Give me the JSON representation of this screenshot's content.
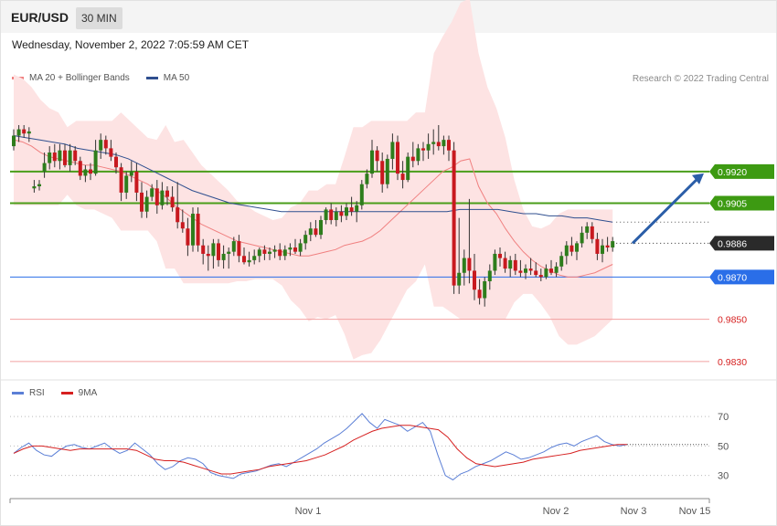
{
  "header": {
    "symbol": "EUR/USD",
    "timeframe": "30 MIN"
  },
  "datetime": "Wednesday, November 2, 2022 7:05:59 AM CET",
  "legend_main": [
    {
      "label": "MA 20 + Bollinger Bands",
      "color": "#f08080"
    },
    {
      "label": "MA 50",
      "color": "#2f4f8f"
    }
  ],
  "legend_rsi": [
    {
      "label": "RSI",
      "color": "#5b7fd6"
    },
    {
      "label": "9MA",
      "color": "#d62020"
    }
  ],
  "credit": "Research © 2022 Trading Central",
  "colors": {
    "up": "#2e7d1c",
    "down": "#c8191f",
    "band": "#fde3e3",
    "ma20": "#f08080",
    "ma50": "#2f4f8f",
    "resistance": "#4a9e1a",
    "support": "#2a6ee8",
    "target": "#f2a0a0",
    "current": "#2a2a2a",
    "arrow": "#2b5ea8"
  },
  "chart_data": [
    {
      "type": "line",
      "title": "EUR/USD 30 MIN",
      "ylim": [
        0.9823,
        0.9958
      ],
      "x_ticks": [
        "Nov 1",
        "Nov 2",
        "Nov 3",
        "Nov 15"
      ],
      "levels": [
        {
          "value": 0.992,
          "label": "0.9920",
          "kind": "resistance"
        },
        {
          "value": 0.9905,
          "label": "0.9905",
          "kind": "resistance"
        },
        {
          "value": 0.9886,
          "label": "0.9886",
          "kind": "current"
        },
        {
          "value": 0.987,
          "label": "0.9870",
          "kind": "support"
        },
        {
          "value": 0.985,
          "label": "0.9850",
          "kind": "target"
        },
        {
          "value": 0.983,
          "label": "0.9830",
          "kind": "target"
        }
      ],
      "forecast": {
        "from": 0.9886,
        "to": 0.992,
        "direction": "up"
      },
      "candles": [
        [
          0.9932,
          0.994,
          0.993,
          0.9937
        ],
        [
          0.9937,
          0.9942,
          0.9934,
          0.994
        ],
        [
          0.994,
          0.9942,
          0.9936,
          0.9938
        ],
        [
          0.9938,
          0.9941,
          0.9934,
          0.9939
        ],
        [
          0.9912,
          0.9916,
          0.991,
          0.9913
        ],
        [
          0.9913,
          0.9916,
          0.9911,
          0.9914
        ],
        [
          0.992,
          0.9929,
          0.9917,
          0.9924
        ],
        [
          0.9924,
          0.9932,
          0.9921,
          0.9929
        ],
        [
          0.9929,
          0.9933,
          0.9922,
          0.9925
        ],
        [
          0.9925,
          0.9933,
          0.9921,
          0.993
        ],
        [
          0.993,
          0.9933,
          0.9922,
          0.9923
        ],
        [
          0.9923,
          0.9933,
          0.992,
          0.993
        ],
        [
          0.993,
          0.9932,
          0.9923,
          0.9925
        ],
        [
          0.9925,
          0.9927,
          0.9916,
          0.9918
        ],
        [
          0.9918,
          0.9923,
          0.9915,
          0.9921
        ],
        [
          0.9921,
          0.9924,
          0.9916,
          0.9919
        ],
        [
          0.9919,
          0.9935,
          0.9918,
          0.993
        ],
        [
          0.993,
          0.9938,
          0.9926,
          0.9935
        ],
        [
          0.9935,
          0.9937,
          0.9928,
          0.9931
        ],
        [
          0.9931,
          0.9935,
          0.9925,
          0.9927
        ],
        [
          0.9927,
          0.9929,
          0.9919,
          0.9922
        ],
        [
          0.9922,
          0.9924,
          0.9906,
          0.991
        ],
        [
          0.991,
          0.992,
          0.9907,
          0.9918
        ],
        [
          0.9918,
          0.9925,
          0.9915,
          0.992
        ],
        [
          0.992,
          0.9924,
          0.9906,
          0.991
        ],
        [
          0.991,
          0.9915,
          0.9898,
          0.9901
        ],
        [
          0.9901,
          0.9911,
          0.9898,
          0.9908
        ],
        [
          0.9908,
          0.9914,
          0.9906,
          0.9912
        ],
        [
          0.9912,
          0.9916,
          0.99,
          0.9904
        ],
        [
          0.9904,
          0.9915,
          0.9902,
          0.9911
        ],
        [
          0.9911,
          0.9913,
          0.9904,
          0.9908
        ],
        [
          0.9908,
          0.9913,
          0.9901,
          0.9903
        ],
        [
          0.9903,
          0.9915,
          0.9893,
          0.9896
        ],
        [
          0.9896,
          0.9902,
          0.9891,
          0.9893
        ],
        [
          0.9893,
          0.9898,
          0.988,
          0.9885
        ],
        [
          0.9885,
          0.9903,
          0.9882,
          0.99
        ],
        [
          0.99,
          0.9903,
          0.9882,
          0.9885
        ],
        [
          0.9885,
          0.9888,
          0.9876,
          0.9881
        ],
        [
          0.9881,
          0.9885,
          0.9873,
          0.988
        ],
        [
          0.988,
          0.9888,
          0.9874,
          0.9886
        ],
        [
          0.9886,
          0.9888,
          0.9875,
          0.9878
        ],
        [
          0.9878,
          0.9885,
          0.9874,
          0.9881
        ],
        [
          0.9881,
          0.9884,
          0.9874,
          0.9882
        ],
        [
          0.9882,
          0.9889,
          0.988,
          0.9887
        ],
        [
          0.9887,
          0.989,
          0.9877,
          0.988
        ],
        [
          0.988,
          0.9884,
          0.9876,
          0.9877
        ],
        [
          0.9877,
          0.9882,
          0.9875,
          0.9878
        ],
        [
          0.9878,
          0.9883,
          0.9876,
          0.988
        ],
        [
          0.988,
          0.9884,
          0.9877,
          0.9883
        ],
        [
          0.9883,
          0.9885,
          0.9878,
          0.9881
        ],
        [
          0.9881,
          0.9884,
          0.9878,
          0.9882
        ],
        [
          0.9882,
          0.9885,
          0.9879,
          0.9883
        ],
        [
          0.9883,
          0.9886,
          0.9878,
          0.988
        ],
        [
          0.988,
          0.9885,
          0.9878,
          0.9883
        ],
        [
          0.9883,
          0.9886,
          0.988,
          0.9884
        ],
        [
          0.9884,
          0.9888,
          0.9881,
          0.9882
        ],
        [
          0.9882,
          0.9888,
          0.988,
          0.9886
        ],
        [
          0.9886,
          0.9892,
          0.9883,
          0.989
        ],
        [
          0.989,
          0.9896,
          0.9887,
          0.9893
        ],
        [
          0.9893,
          0.9897,
          0.9889,
          0.989
        ],
        [
          0.989,
          0.9899,
          0.9888,
          0.9897
        ],
        [
          0.9897,
          0.9903,
          0.9895,
          0.9902
        ],
        [
          0.9902,
          0.9905,
          0.9895,
          0.9897
        ],
        [
          0.9897,
          0.9903,
          0.9894,
          0.9901
        ],
        [
          0.9901,
          0.9904,
          0.9896,
          0.9899
        ],
        [
          0.9899,
          0.9905,
          0.9897,
          0.9903
        ],
        [
          0.9903,
          0.9908,
          0.9899,
          0.9901
        ],
        [
          0.9901,
          0.9906,
          0.9896,
          0.9904
        ],
        [
          0.9904,
          0.9916,
          0.9902,
          0.9914
        ],
        [
          0.9914,
          0.9921,
          0.9912,
          0.9919
        ],
        [
          0.9919,
          0.9935,
          0.9917,
          0.993
        ],
        [
          0.993,
          0.9932,
          0.992,
          0.9925
        ],
        [
          0.9925,
          0.9929,
          0.991,
          0.9914
        ],
        [
          0.9914,
          0.9928,
          0.9912,
          0.9926
        ],
        [
          0.9926,
          0.9938,
          0.9921,
          0.9934
        ],
        [
          0.9934,
          0.9937,
          0.9916,
          0.9919
        ],
        [
          0.9919,
          0.9925,
          0.9912,
          0.9916
        ],
        [
          0.9916,
          0.9929,
          0.9915,
          0.9927
        ],
        [
          0.9927,
          0.9934,
          0.9922,
          0.9925
        ],
        [
          0.9925,
          0.9933,
          0.9923,
          0.9931
        ],
        [
          0.9931,
          0.9934,
          0.9925,
          0.993
        ],
        [
          0.993,
          0.9938,
          0.9926,
          0.9933
        ],
        [
          0.9933,
          0.994,
          0.9928,
          0.9934
        ],
        [
          0.9934,
          0.9942,
          0.993,
          0.9932
        ],
        [
          0.9932,
          0.9937,
          0.9928,
          0.9935
        ],
        [
          0.9935,
          0.9937,
          0.9925,
          0.993
        ],
        [
          0.993,
          0.9934,
          0.9862,
          0.9866
        ],
        [
          0.9866,
          0.9898,
          0.9862,
          0.9872
        ],
        [
          0.9872,
          0.9883,
          0.9866,
          0.9879
        ],
        [
          0.9879,
          0.9907,
          0.9867,
          0.9873
        ],
        [
          0.9873,
          0.9881,
          0.9859,
          0.9864
        ],
        [
          0.9864,
          0.9869,
          0.9857,
          0.986
        ],
        [
          0.986,
          0.987,
          0.9856,
          0.9868
        ],
        [
          0.9868,
          0.9876,
          0.9864,
          0.9873
        ],
        [
          0.9873,
          0.9883,
          0.9871,
          0.9881
        ],
        [
          0.9881,
          0.9884,
          0.9875,
          0.9879
        ],
        [
          0.9879,
          0.9882,
          0.9872,
          0.9874
        ],
        [
          0.9874,
          0.988,
          0.987,
          0.9878
        ],
        [
          0.9878,
          0.9881,
          0.9871,
          0.9873
        ],
        [
          0.9873,
          0.9878,
          0.987,
          0.9872
        ],
        [
          0.9872,
          0.9876,
          0.9869,
          0.9874
        ],
        [
          0.9874,
          0.9879,
          0.9871,
          0.9873
        ],
        [
          0.9873,
          0.9877,
          0.987,
          0.9871
        ],
        [
          0.9871,
          0.9874,
          0.9868,
          0.987
        ],
        [
          0.987,
          0.9876,
          0.9869,
          0.9874
        ],
        [
          0.9874,
          0.9878,
          0.9871,
          0.9872
        ],
        [
          0.9872,
          0.9877,
          0.987,
          0.9875
        ],
        [
          0.9875,
          0.9882,
          0.9873,
          0.988
        ],
        [
          0.988,
          0.9887,
          0.9876,
          0.9885
        ],
        [
          0.9885,
          0.9889,
          0.988,
          0.9882
        ],
        [
          0.9882,
          0.9887,
          0.9878,
          0.9886
        ],
        [
          0.9886,
          0.9894,
          0.9884,
          0.9891
        ],
        [
          0.9891,
          0.9896,
          0.9888,
          0.9894
        ],
        [
          0.9894,
          0.9896,
          0.9886,
          0.9888
        ],
        [
          0.9888,
          0.9891,
          0.9878,
          0.9881
        ],
        [
          0.9881,
          0.9888,
          0.9877,
          0.9885
        ],
        [
          0.9885,
          0.9889,
          0.9882,
          0.9884
        ],
        [
          0.9884,
          0.9889,
          0.9882,
          0.9887
        ]
      ],
      "ma20": [
        0.9935,
        0.9934,
        0.9932,
        0.9929,
        0.9927,
        0.9926,
        0.9925,
        0.9924,
        0.9923,
        0.9923,
        0.9922,
        0.9921,
        0.992,
        0.9918,
        0.9916,
        0.9914,
        0.9911,
        0.9908,
        0.9904,
        0.9901,
        0.9898,
        0.9895,
        0.9893,
        0.9891,
        0.9889,
        0.9887,
        0.9886,
        0.9885,
        0.9884,
        0.9883,
        0.9882,
        0.9881,
        0.988,
        0.988,
        0.9881,
        0.9882,
        0.9883,
        0.9885,
        0.9886,
        0.9887,
        0.9889,
        0.9892,
        0.9896,
        0.99,
        0.9904,
        0.9908,
        0.9912,
        0.9916,
        0.992,
        0.9922,
        0.9925,
        0.9926,
        0.9913,
        0.9905,
        0.99,
        0.9893,
        0.9887,
        0.9882,
        0.9878,
        0.9875,
        0.9873,
        0.9871,
        0.987,
        0.987,
        0.9871,
        0.9872,
        0.9874,
        0.9876
      ],
      "ma50": [
        0.9937,
        0.9936,
        0.9935,
        0.9934,
        0.9933,
        0.9931,
        0.993,
        0.9929,
        0.9928,
        0.9926,
        0.9923,
        0.992,
        0.9917,
        0.9914,
        0.9911,
        0.9909,
        0.9907,
        0.9905,
        0.9904,
        0.9903,
        0.9902,
        0.9901,
        0.9901,
        0.9901,
        0.9901,
        0.9901,
        0.9901,
        0.9901,
        0.9901,
        0.9901,
        0.9901,
        0.9901,
        0.9901,
        0.9901,
        0.9901,
        0.9902,
        0.9902,
        0.9902,
        0.9902,
        0.9901,
        0.99,
        0.99,
        0.9899,
        0.9899,
        0.9898,
        0.9898,
        0.9897,
        0.9896
      ]
    },
    {
      "type": "line",
      "title": "RSI",
      "ylim": [
        18,
        80
      ],
      "y_ticks": [
        70,
        50,
        30
      ],
      "series": [
        {
          "name": "RSI",
          "values": [
            45,
            49,
            52,
            47,
            44,
            43,
            47,
            50,
            51,
            49,
            48,
            50,
            52,
            48,
            45,
            47,
            52,
            48,
            44,
            38,
            34,
            36,
            40,
            42,
            41,
            38,
            32,
            30,
            29,
            28,
            31,
            32,
            33,
            35,
            37,
            38,
            36,
            39,
            42,
            45,
            48,
            52,
            55,
            58,
            62,
            67,
            72,
            66,
            62,
            68,
            66,
            64,
            60,
            63,
            66,
            60,
            44,
            30,
            27,
            31,
            33,
            36,
            38,
            40,
            43,
            46,
            44,
            41,
            42,
            44,
            46,
            49,
            51,
            52,
            50,
            53,
            55,
            57,
            53,
            51,
            50,
            51
          ]
        },
        {
          "name": "9MA",
          "values": [
            45,
            48,
            50,
            50,
            49,
            48,
            47,
            48,
            48,
            48,
            48,
            48,
            48,
            47,
            44,
            41,
            40,
            40,
            39,
            37,
            35,
            33,
            31,
            31,
            32,
            33,
            34,
            36,
            37,
            38,
            39,
            40,
            42,
            44,
            47,
            50,
            54,
            57,
            60,
            62,
            63,
            64,
            64,
            63,
            62,
            61,
            56,
            48,
            42,
            38,
            37,
            36,
            37,
            38,
            39,
            41,
            42,
            43,
            44,
            45,
            47,
            48,
            49,
            50,
            51,
            51
          ]
        }
      ]
    }
  ]
}
